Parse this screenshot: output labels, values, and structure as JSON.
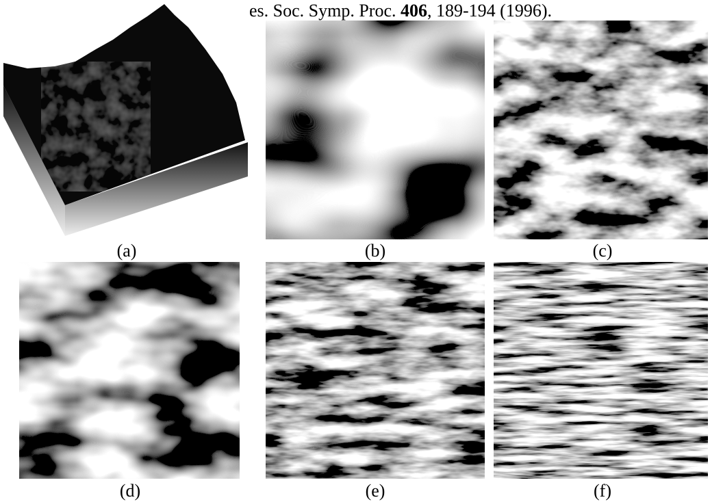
{
  "header": {
    "citation_start": "es. Soc. Symp. Proc. ",
    "volume": "406",
    "citation_end": ", 189-194 (1996)."
  },
  "panels": [
    {
      "label": "(a)"
    },
    {
      "label": "(b)"
    },
    {
      "label": "(c)"
    },
    {
      "label": "(d)"
    },
    {
      "label": "(e)"
    },
    {
      "label": "(f)"
    }
  ]
}
